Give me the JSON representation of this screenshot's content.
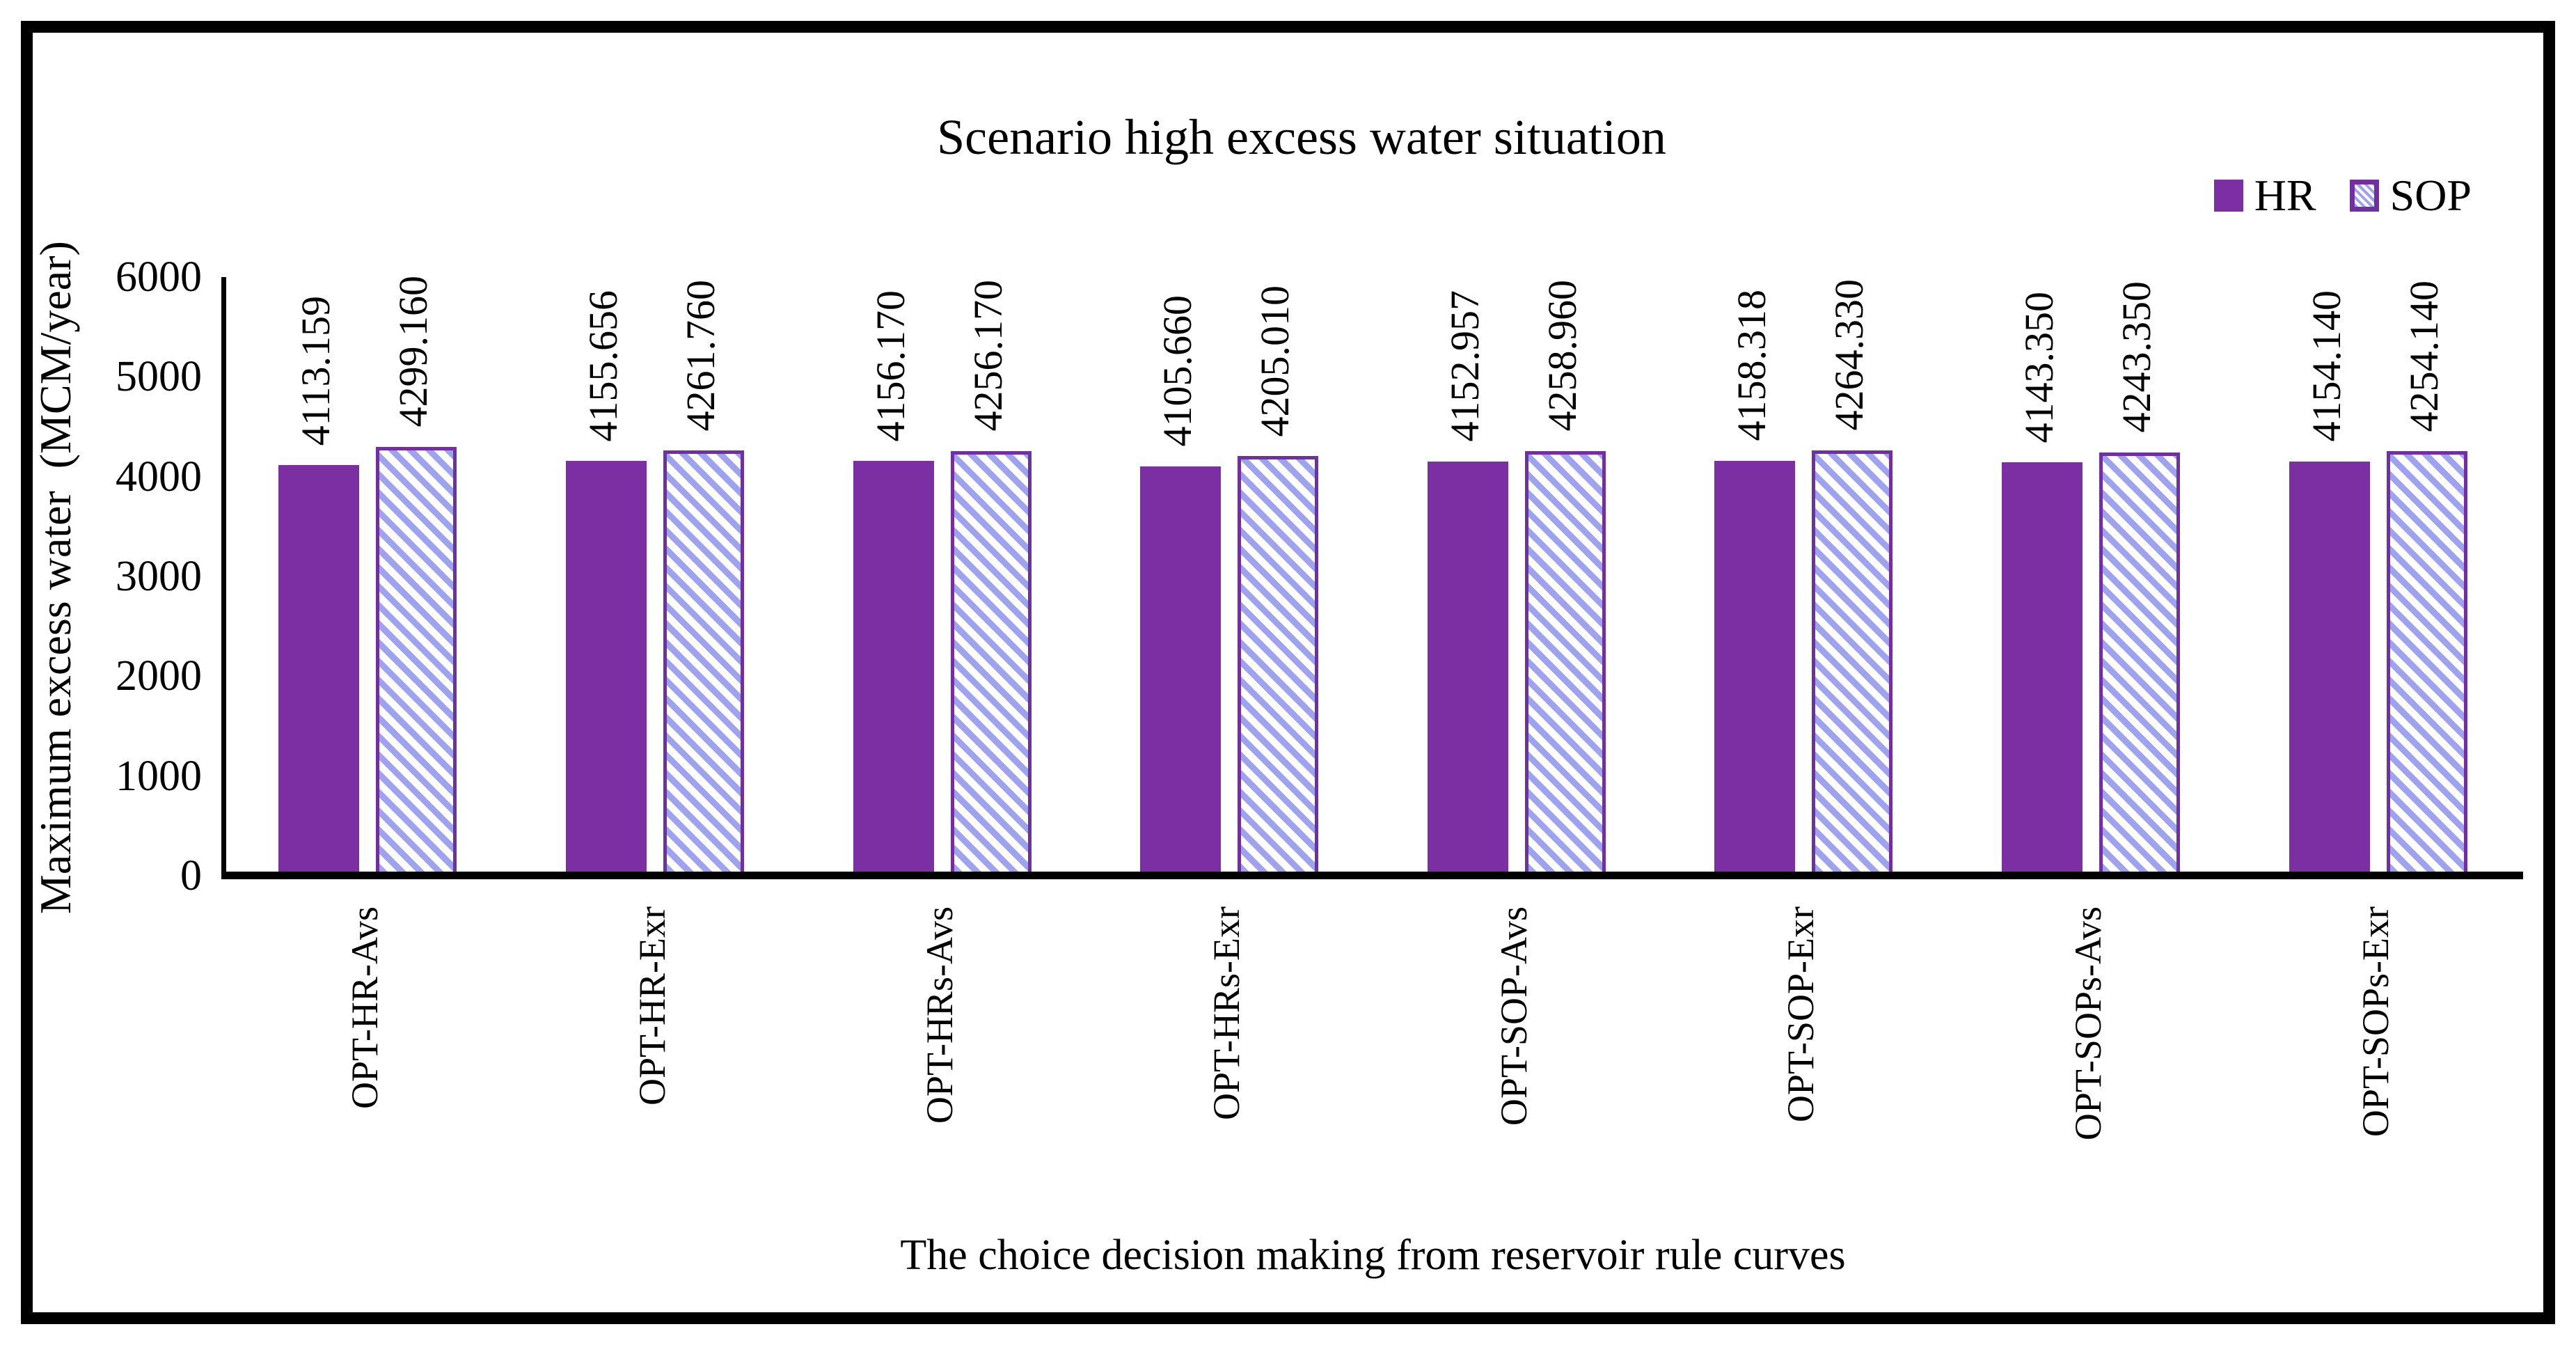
{
  "chart_data": {
    "type": "bar",
    "title": "Scenario high excess water situation",
    "xlabel": "The choice decision making from reservoir rule curves",
    "ylabel": "Maximum excess water  (MCM/year)",
    "categories": [
      "OPT-HR-Avs",
      "OPT-HR-Exr",
      "OPT-HRs-Avs",
      "OPT-HRs-Exr",
      "OPT-SOP-Avs",
      "OPT-SOP-Exr",
      "OPT-SOPs-Avs",
      "OPT-SOPs-Exr"
    ],
    "series": [
      {
        "name": "HR",
        "values": [
          4113.159,
          4155.656,
          4156.17,
          4105.66,
          4152.957,
          4158.318,
          4143.35,
          4154.14
        ],
        "labels": [
          "4113.159",
          "4155.656",
          "4156.170",
          "4105.660",
          "4152.957",
          "4158.318",
          "4143.350",
          "4154.140"
        ]
      },
      {
        "name": "SOP",
        "values": [
          4299.16,
          4261.76,
          4256.17,
          4205.01,
          4258.96,
          4264.33,
          4243.35,
          4254.14
        ],
        "labels": [
          "4299.160",
          "4261.760",
          "4256.170",
          "4205.010",
          "4258.960",
          "4264.330",
          "4243.350",
          "4254.140"
        ]
      }
    ],
    "ylim": [
      0,
      6000
    ],
    "ytick_step": 1000,
    "yticks": [
      "0",
      "1000",
      "2000",
      "3000",
      "4000",
      "5000",
      "6000"
    ],
    "grid": false,
    "legend_position": "top-right",
    "colors": {
      "hr_fill": "#7B2FA2",
      "sop_hatch": "#9EA3F0",
      "sop_border": "#7030A0",
      "axis": "#000000",
      "text": "#000000"
    }
  }
}
